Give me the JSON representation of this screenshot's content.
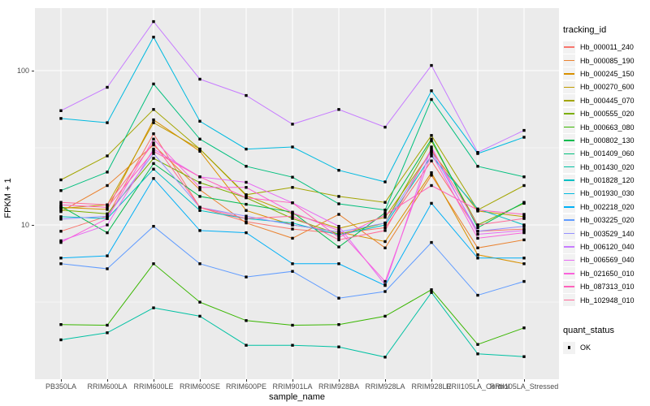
{
  "figure": {
    "background": "#FFFFFF",
    "panel_background": "#EBEBEB",
    "grid_color": "#FFFFFF",
    "tick_text_color": "#4D4D4D",
    "point_color": "#000000"
  },
  "axes": {
    "x_title": "sample_name",
    "y_title": "FPKM + 1",
    "y_ticks": [
      {
        "label": "100",
        "value": 100
      },
      {
        "label": "10",
        "value": 10
      }
    ]
  },
  "legend": {
    "tracking_title": "tracking_id",
    "quant_title": "quant_status",
    "quant_items": [
      {
        "label": "OK",
        "marker": "black-square"
      }
    ]
  },
  "chart_data": {
    "type": "line",
    "title": "",
    "xlabel": "sample_name",
    "ylabel": "FPKM + 1",
    "y_scale": "log10",
    "grid": "on",
    "legend_position": "right",
    "y_major_gridlines": [
      10,
      100
    ],
    "y_minor_gridlines": [
      3.162,
      31.62
    ],
    "x_categories": [
      "PB350LA",
      "RRIM600LA",
      "RRIM600LE",
      "RRIM600SE",
      "RRIM600PE",
      "RRIM901LA",
      "RRIM928BA",
      "RRIM928LA",
      "RRIM928LE",
      "RRII105LA_Control",
      "RRII105LA_Stressed"
    ],
    "marker": "black-square",
    "series": [
      {
        "name": "Hb_000011_240",
        "color": "#F8766D",
        "values": [
          9.1,
          11.4,
          39,
          13,
          10.5,
          9.4,
          8.8,
          9.6,
          26,
          9.1,
          9.4
        ]
      },
      {
        "name": "Hb_000085_190",
        "color": "#EA8331",
        "values": [
          12.2,
          18,
          33,
          16.9,
          10.3,
          8.2,
          11.7,
          7.1,
          21,
          7.1,
          8.0
        ]
      },
      {
        "name": "Hb_000245_150",
        "color": "#D89000",
        "values": [
          13.0,
          12.6,
          48,
          30,
          12.4,
          10.0,
          9.0,
          7.8,
          21.8,
          6.4,
          5.6
        ]
      },
      {
        "name": "Hb_000270_600",
        "color": "#C09B00",
        "values": [
          12.8,
          13.5,
          46,
          31,
          15.5,
          11.8,
          9.5,
          11.2,
          30,
          12.3,
          11.3
        ]
      },
      {
        "name": "Hb_000445_070",
        "color": "#A3A500",
        "values": [
          19.6,
          28,
          56,
          31,
          15.7,
          17.5,
          15.3,
          14.0,
          38,
          12.5,
          18
        ]
      },
      {
        "name": "Hb_000555_020",
        "color": "#7CAE00",
        "values": [
          12.5,
          11.8,
          27,
          18.8,
          15.0,
          11.0,
          8.7,
          10.3,
          35,
          10.0,
          13.8
        ]
      },
      {
        "name": "Hb_000663_080",
        "color": "#39B600",
        "values": [
          2.26,
          2.24,
          5.6,
          3.16,
          2.4,
          2.24,
          2.26,
          2.56,
          3.8,
          1.68,
          2.15
        ]
      },
      {
        "name": "Hb_000802_130",
        "color": "#00BB4E",
        "values": [
          13.2,
          8.9,
          25,
          15.3,
          13.6,
          12.1,
          7.2,
          12.0,
          36,
          9.6,
          14.0
        ]
      },
      {
        "name": "Hb_001409_060",
        "color": "#00BF7D",
        "values": [
          16.7,
          22,
          82,
          36,
          24,
          20.4,
          13.7,
          12.5,
          65,
          24,
          20.5
        ]
      },
      {
        "name": "Hb_001430_020",
        "color": "#00C1A3",
        "values": [
          1.8,
          2.0,
          2.9,
          2.56,
          1.66,
          1.66,
          1.62,
          1.39,
          3.65,
          1.46,
          1.4
        ]
      },
      {
        "name": "Hb_001828_120",
        "color": "#00BFC4",
        "values": [
          11.3,
          11.0,
          23,
          12.4,
          11.0,
          10.3,
          8.6,
          10.0,
          28,
          12.7,
          10.0
        ]
      },
      {
        "name": "Hb_001930_030",
        "color": "#00BAE0",
        "values": [
          49,
          46,
          165,
          47,
          31,
          32,
          22.6,
          19,
          74,
          29,
          37
        ]
      },
      {
        "name": "Hb_002218_020",
        "color": "#00B0F6",
        "values": [
          6.1,
          6.3,
          20,
          9.2,
          8.9,
          5.6,
          5.6,
          4.05,
          13.8,
          6.1,
          6.1
        ]
      },
      {
        "name": "Hb_003225_020",
        "color": "#619CFF",
        "values": [
          5.6,
          5.2,
          9.8,
          5.6,
          4.6,
          5.0,
          3.35,
          3.7,
          7.7,
          3.5,
          4.3
        ]
      },
      {
        "name": "Hb_003529_140",
        "color": "#9590FF",
        "values": [
          10.9,
          11.4,
          29,
          13,
          11.4,
          10.0,
          9.0,
          10.3,
          30,
          9.1,
          9.8
        ]
      },
      {
        "name": "Hb_006120_040",
        "color": "#C77CFF",
        "values": [
          55,
          78,
          208,
          88,
          69,
          45,
          56,
          43,
          108,
          29.5,
          41
        ]
      },
      {
        "name": "Hb_006569_040",
        "color": "#E76BF3",
        "values": [
          7.9,
          10.0,
          31,
          20.5,
          18.9,
          13.9,
          9.8,
          4.1,
          32,
          8.7,
          9.2
        ]
      },
      {
        "name": "Hb_021650_010",
        "color": "#FA62DB",
        "values": [
          7.7,
          11.0,
          36,
          17.5,
          17.5,
          12.0,
          9.2,
          4.3,
          29,
          8.2,
          8.9
        ]
      },
      {
        "name": "Hb_087313_010",
        "color": "#FF62BC",
        "values": [
          13.5,
          13.0,
          30,
          20.5,
          15.0,
          13.9,
          8.3,
          11.6,
          18,
          12.5,
          11.7
        ]
      },
      {
        "name": "Hb_102948_010",
        "color": "#FF6A98",
        "values": [
          14.0,
          13.5,
          34,
          13.0,
          11.0,
          11.4,
          8.0,
          9.2,
          31,
          10.0,
          11.0
        ]
      }
    ]
  }
}
